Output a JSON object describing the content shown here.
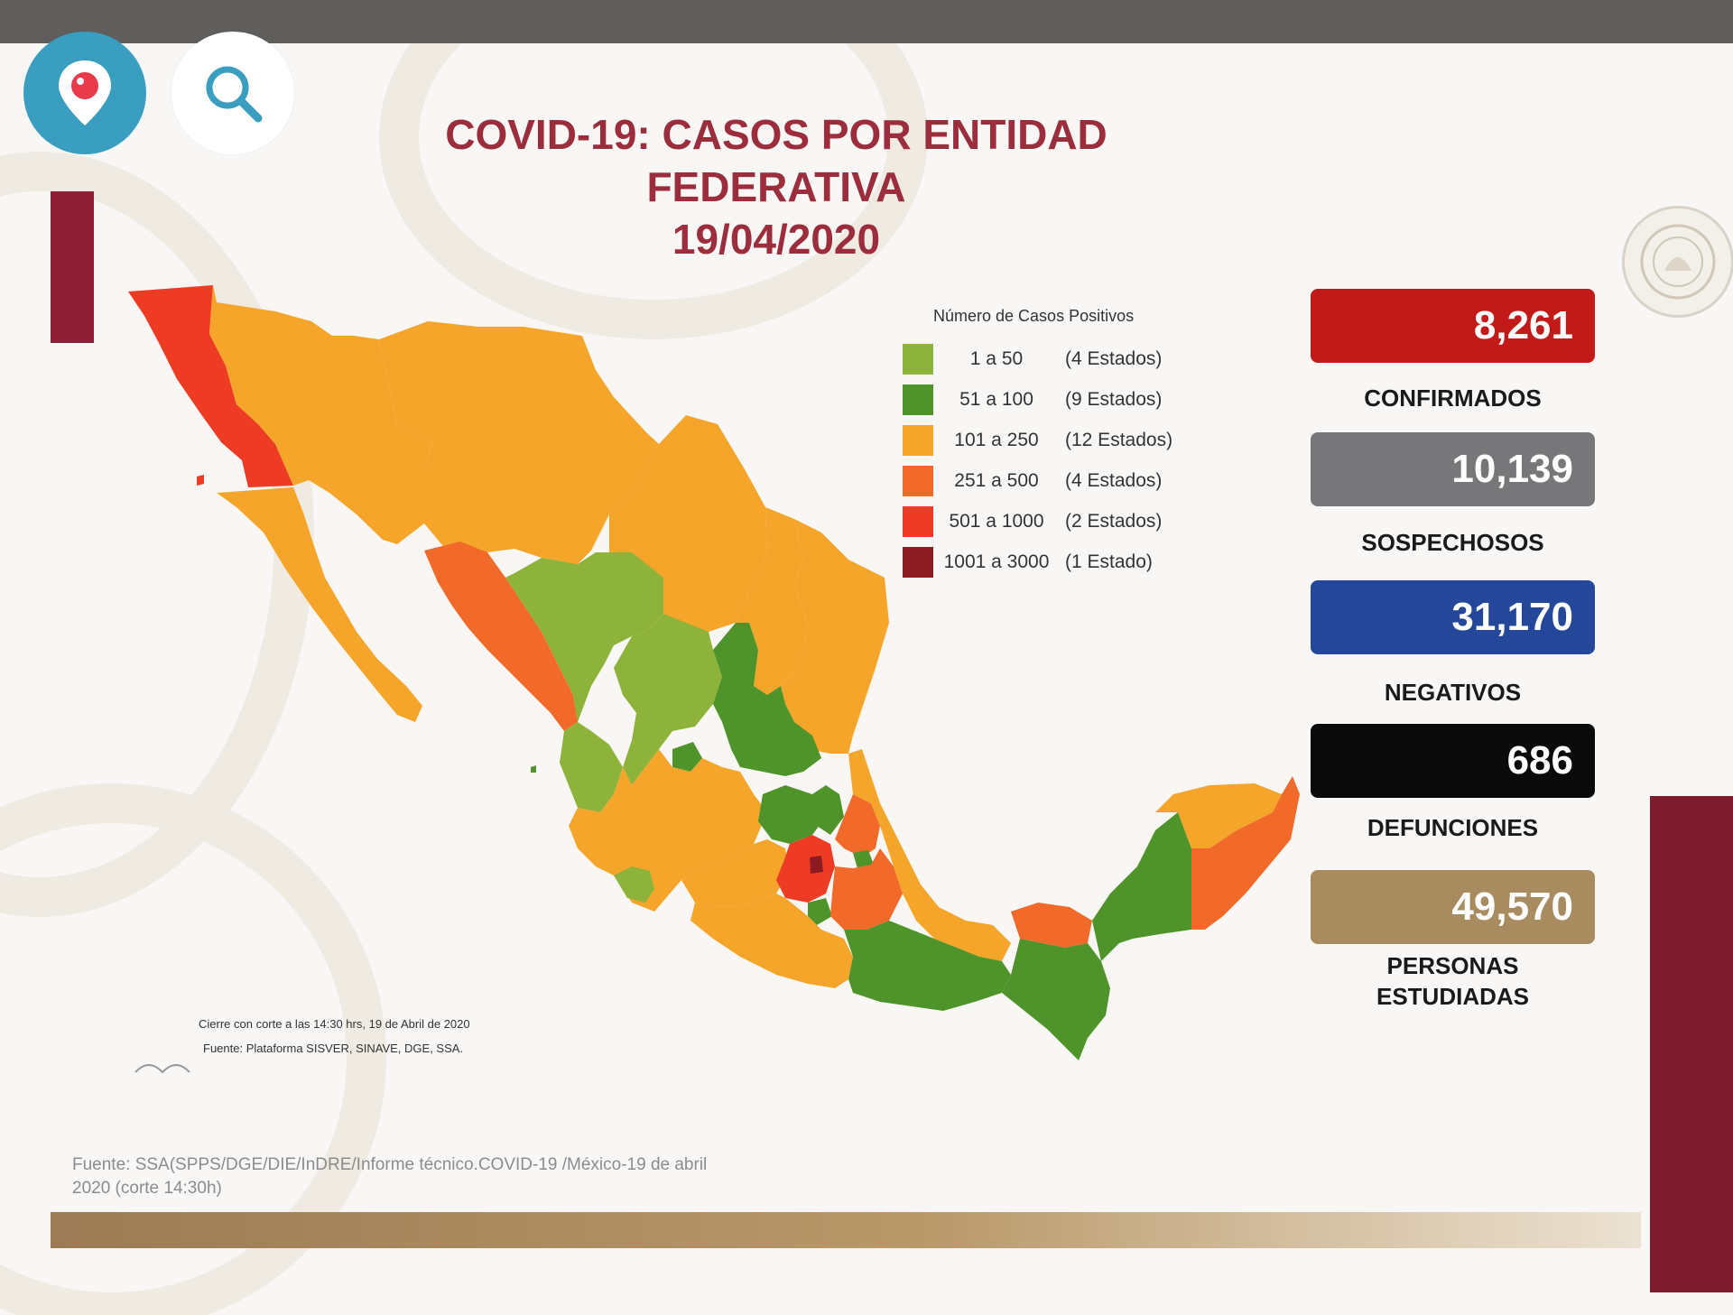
{
  "title": {
    "line1": "COVID-19: CASOS POR ENTIDAD FEDERATIVA",
    "line2": "19/04/2020"
  },
  "icons": {
    "periscope": "periscope-icon",
    "search": "search-icon",
    "seal": "national-seal-icon"
  },
  "legend": {
    "title": "Número de Casos Positivos",
    "items": [
      {
        "range": "1 a 50",
        "count": "(4 Estados)",
        "color": "#8db33a"
      },
      {
        "range": "51 a 100",
        "count": "(9 Estados)",
        "color": "#4f942a"
      },
      {
        "range": "101 a 250",
        "count": "(12 Estados)",
        "color": "#f5a529"
      },
      {
        "range": "251 a 500",
        "count": "(4 Estados)",
        "color": "#f26a2a"
      },
      {
        "range": "501 a 1000",
        "count": "(2 Estados)",
        "color": "#ee3b24"
      },
      {
        "range": "1001 a 3000",
        "count": "(1 Estado)",
        "color": "#8c1c22"
      }
    ]
  },
  "stats": [
    {
      "value": "8,261",
      "label": "CONFIRMADOS",
      "color": "#c21a19"
    },
    {
      "value": "10,139",
      "label": "SOSPECHOSOS",
      "color": "#77777a"
    },
    {
      "value": "31,170",
      "label": "NEGATIVOS",
      "color": "#24479a"
    },
    {
      "value": "686",
      "label": "DEFUNCIONES",
      "color": "#0a0a0a"
    },
    {
      "value": "49,570",
      "label": "PERSONAS ESTUDIADAS",
      "color": "#a88c60"
    }
  ],
  "notes": {
    "cierre": "Cierre con corte a las 14:30 hrs, 19 de Abril de 2020",
    "fuente_map": "Fuente: Plataforma SISVER, SINAVE, DGE, SSA."
  },
  "footer_source": {
    "line1": "Fuente: SSA(SPPS/DGE/DIE/InDRE/Informe técnico.COVID-19 /México-19 de abril",
    "line2": "2020 (corte 14:30h)"
  }
}
